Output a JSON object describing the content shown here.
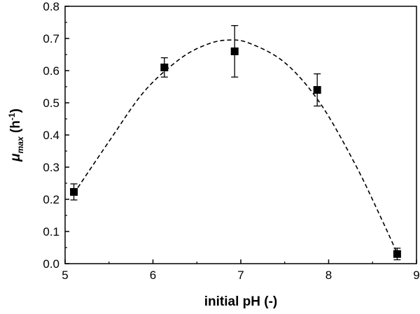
{
  "chart_data": {
    "type": "scatter",
    "xlabel": "initial pH (-)",
    "ylabel": {
      "symbol": "μ",
      "subscript": "max",
      "unit_open": " (h",
      "unit_exp": "-1",
      "unit_close": ")"
    },
    "xlim": [
      5,
      9
    ],
    "ylim": [
      0.0,
      0.8
    ],
    "xticks": [
      "5",
      "6",
      "7",
      "8",
      "9"
    ],
    "yticks": [
      "0.0",
      "0.1",
      "0.2",
      "0.3",
      "0.4",
      "0.5",
      "0.6",
      "0.7",
      "0.8"
    ],
    "grid": false,
    "legend": "none",
    "series": [
      {
        "marker": "square",
        "color": "#000000",
        "points": [
          {
            "x": 5.1,
            "y": 0.223,
            "err": 0.025
          },
          {
            "x": 6.13,
            "y": 0.61,
            "err": 0.03
          },
          {
            "x": 6.93,
            "y": 0.66,
            "err": 0.08
          },
          {
            "x": 7.87,
            "y": 0.54,
            "err": 0.05
          },
          {
            "x": 8.78,
            "y": 0.03,
            "err": 0.018
          }
        ]
      }
    ],
    "fit_curve": {
      "style": "dashed",
      "color": "#000000",
      "x": [
        5.1,
        5.5,
        5.9,
        6.3,
        6.6,
        6.85,
        7.1,
        7.5,
        7.9,
        8.3,
        8.6,
        8.78
      ],
      "y": [
        0.218,
        0.38,
        0.535,
        0.635,
        0.68,
        0.695,
        0.685,
        0.625,
        0.5,
        0.31,
        0.14,
        0.032
      ]
    }
  }
}
